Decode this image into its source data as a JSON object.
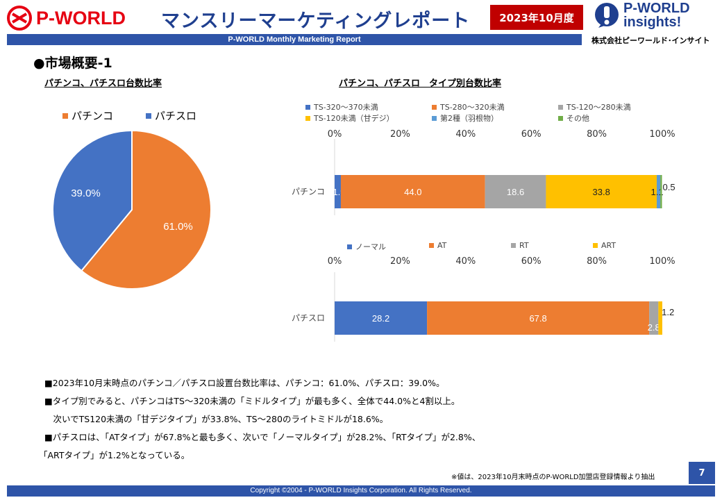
{
  "header": {
    "logo_text": "P-WORLD",
    "title": "マンスリーマーケティングレポート",
    "period": "2023年10月度",
    "brand_line1": "P-WORLD",
    "brand_line2": "insights!",
    "brand_corp": "株式会社ピーワールド･インサイト",
    "subtitle": "P-WORLD Monthly Marketing Report"
  },
  "section_title": "●市場概要-1",
  "pie_chart": {
    "title": "パチンコ、パチスロ台数比率",
    "chart_data": {
      "type": "pie",
      "categories": [
        "パチンコ",
        "パチスロ"
      ],
      "values": [
        61.0,
        39.0
      ],
      "labels": [
        "61.0%",
        "39.0%"
      ],
      "colors": [
        "#ed7d31",
        "#4472c4"
      ],
      "legend_position": "top"
    }
  },
  "pachinko_chart": {
    "title": "パチンコ、パチスロ　タイプ別台数比率",
    "chart_data": {
      "type": "bar",
      "orientation": "horizontal-stacked-100",
      "categories": [
        "パチンコ"
      ],
      "series": [
        {
          "name": "TS-320～370未満",
          "values": [
            1.9
          ],
          "color": "#4472c4",
          "label": "1.9",
          "label_color": "#ffffff"
        },
        {
          "name": "TS-280～320未満",
          "values": [
            44.0
          ],
          "color": "#ed7d31",
          "label": "44.0",
          "label_color": "#ffffff"
        },
        {
          "name": "TS-120～280未満",
          "values": [
            18.6
          ],
          "color": "#a5a5a5",
          "label": "18.6",
          "label_color": "#ffffff"
        },
        {
          "name": "TS-120未満（甘デジ）",
          "values": [
            33.8
          ],
          "color": "#ffc000",
          "label": "33.8",
          "label_color": "#222222"
        },
        {
          "name": "第2種（羽根物）",
          "values": [
            1.1
          ],
          "color": "#5b9bd5",
          "label": "1.1",
          "label_color": "#222222"
        },
        {
          "name": "その他",
          "values": [
            0.5
          ],
          "color": "#70ad47",
          "label": "0.5",
          "label_color": "#222222"
        }
      ],
      "x_ticks": [
        "0%",
        "20%",
        "40%",
        "60%",
        "80%",
        "100%"
      ],
      "xlim": [
        0,
        100
      ],
      "legend_position": "top"
    }
  },
  "pachislo_chart": {
    "chart_data": {
      "type": "bar",
      "orientation": "horizontal-stacked-100",
      "categories": [
        "パチスロ"
      ],
      "series": [
        {
          "name": "ノーマル",
          "values": [
            28.2
          ],
          "color": "#4472c4",
          "label": "28.2",
          "label_color": "#ffffff"
        },
        {
          "name": "AT",
          "values": [
            67.8
          ],
          "color": "#ed7d31",
          "label": "67.8",
          "label_color": "#ffffff"
        },
        {
          "name": "RT",
          "values": [
            2.8
          ],
          "color": "#a5a5a5",
          "label": "2.8",
          "label_color": "#ffffff"
        },
        {
          "name": "ART",
          "values": [
            1.2
          ],
          "color": "#ffc000",
          "label": "1.2",
          "label_color": "#222222"
        }
      ],
      "x_ticks": [
        "0%",
        "20%",
        "40%",
        "60%",
        "80%",
        "100%"
      ],
      "xlim": [
        0,
        100
      ],
      "legend_position": "top"
    }
  },
  "notes": [
    "■2023年10月末時点のパチンコ／パチスロ設置台数比率は、パチンコ：61.0%、パチスロ：39.0%。",
    "■タイプ別でみると、パチンコはTS～320未満の「ミドルタイプ」が最も多く、全体で44.0%と4割以上。",
    "　次いでTS120未満の「甘デジタイプ」が33.8%、TS～280のライトミドルが18.6%。",
    "■パチスロは、「ATタイプ」が67.8%と最も多く、次いで「ノーマルタイプ」が28.2%、「RTタイプ」が2.8%、",
    "「ARTタイプ」が1.2%となっている。"
  ],
  "source_note": "※値は、2023年10月末時点のP-WORLD加盟店登録情報より抽出",
  "page_number": "7",
  "footer": "Copyright ©2004 -  P-WORLD Insights Corporation. All Rights Reserved."
}
